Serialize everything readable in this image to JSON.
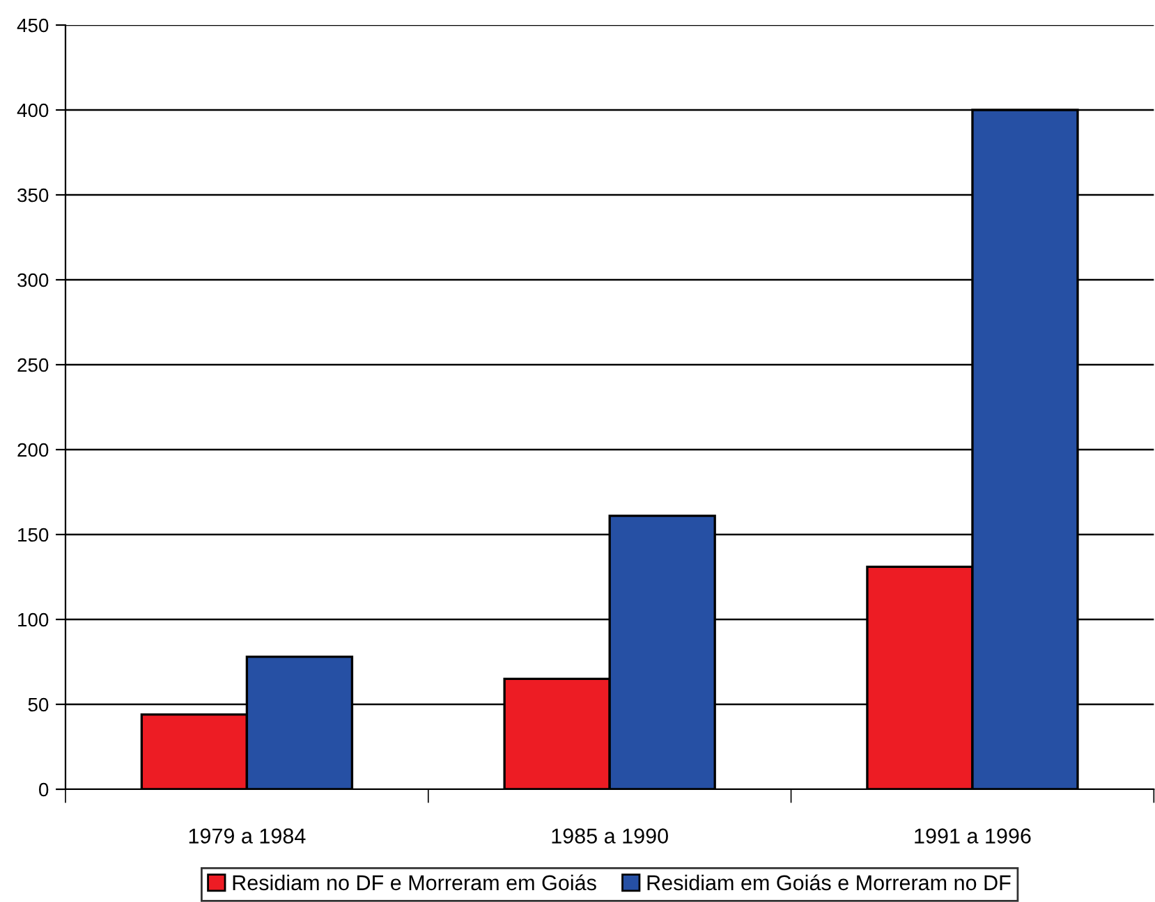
{
  "chart_data": {
    "type": "bar",
    "categories": [
      "1979 a 1984",
      "1985 a 1990",
      "1991 a 1996"
    ],
    "series": [
      {
        "name": "Residiam no DF e Morreram em Goiás",
        "color": "#ed1c24",
        "values": [
          44,
          65,
          131
        ]
      },
      {
        "name": "Residiam em Goiás e Morreram no DF",
        "color": "#2650a4",
        "values": [
          78,
          161,
          400
        ]
      }
    ],
    "ylim": [
      0,
      450
    ],
    "yticks": [
      0,
      50,
      100,
      150,
      200,
      250,
      300,
      350,
      400,
      450
    ],
    "grid": "y",
    "legend": "bottom"
  }
}
